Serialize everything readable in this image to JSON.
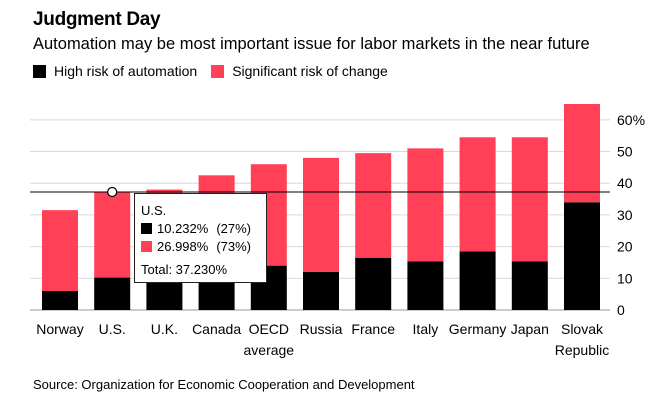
{
  "title": "Judgment Day",
  "subtitle": "Automation may be most important issue for labor markets in the near future",
  "source": "Source: Organization for Economic Cooperation and Development",
  "colors": {
    "high": "#000000",
    "change": "#ff4057",
    "grid": "#d9d9d9"
  },
  "chart_data": {
    "type": "bar",
    "stacked": true,
    "categories": [
      "Norway",
      "U.S.",
      "U.K.",
      "Canada",
      "OECD average",
      "Russia",
      "France",
      "Italy",
      "Germany",
      "Japan",
      "Slovak Republic"
    ],
    "category_lines": [
      [
        "Norway"
      ],
      [
        "U.S."
      ],
      [
        "U.K."
      ],
      [
        "Canada"
      ],
      [
        "OECD",
        "average"
      ],
      [
        "Russia"
      ],
      [
        "France"
      ],
      [
        "Italy"
      ],
      [
        "Germany"
      ],
      [
        "Japan"
      ],
      [
        "Slovak",
        "Republic"
      ]
    ],
    "series": [
      {
        "name": "High risk of automation",
        "values": [
          6,
          10.232,
          9.5,
          9.5,
          14,
          12,
          16.5,
          15.3,
          18.5,
          15.3,
          34
        ]
      },
      {
        "name": "Significant risk of change",
        "values": [
          25.5,
          26.998,
          28.5,
          33,
          32,
          36,
          33,
          35.7,
          36,
          39.2,
          31
        ]
      }
    ],
    "ylim": [
      0,
      65
    ],
    "yticks": [
      0,
      10,
      20,
      30,
      40,
      50,
      60
    ],
    "ytick_labels": [
      "0",
      "10",
      "20",
      "30",
      "40",
      "50",
      "60%"
    ],
    "reference_line": {
      "value": 37.23
    },
    "tooltip": {
      "title": "U.S.",
      "high_value": "10.232%",
      "high_pct": "(27%)",
      "change_value": "26.998%",
      "change_pct": "(73%)",
      "total": "Total: 37.230%"
    }
  }
}
